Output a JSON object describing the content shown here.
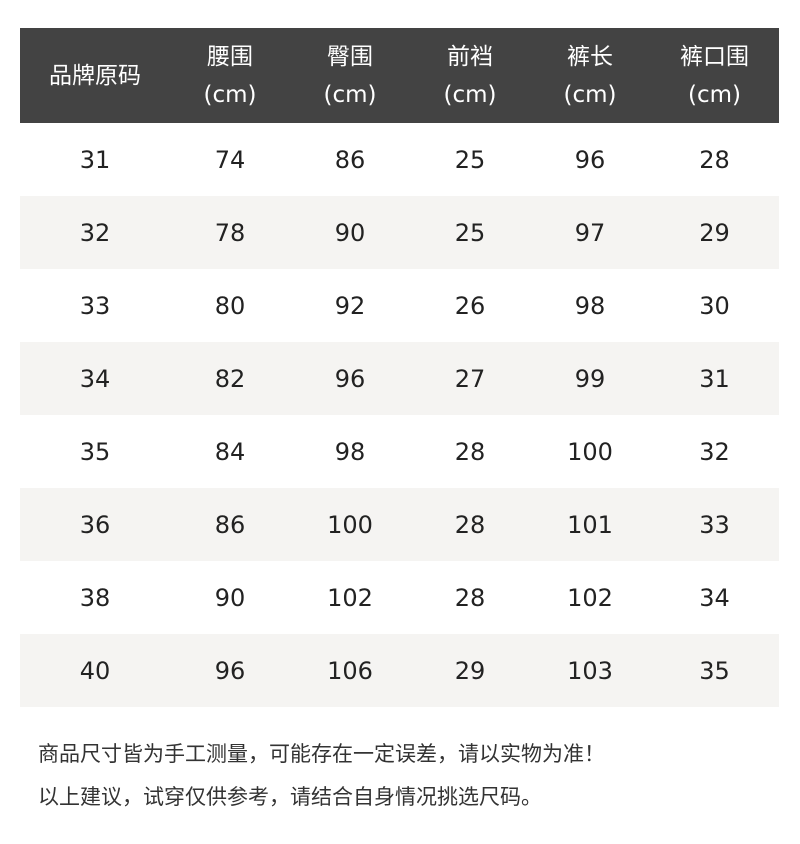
{
  "header": [
    [
      "品牌原码",
      ""
    ],
    [
      "腰围",
      "(cm)"
    ],
    [
      "臀围",
      "(cm)"
    ],
    [
      "前裆",
      "(cm)"
    ],
    [
      "裤长",
      "(cm)"
    ],
    [
      "裤口围",
      "(cm)"
    ]
  ],
  "rows": [
    [
      "31",
      "74",
      "86",
      "25",
      "96",
      "28"
    ],
    [
      "32",
      "78",
      "90",
      "25",
      "97",
      "29"
    ],
    [
      "33",
      "80",
      "92",
      "26",
      "98",
      "30"
    ],
    [
      "34",
      "82",
      "96",
      "27",
      "99",
      "31"
    ],
    [
      "35",
      "84",
      "98",
      "28",
      "100",
      "32"
    ],
    [
      "36",
      "86",
      "100",
      "28",
      "101",
      "33"
    ],
    [
      "38",
      "90",
      "102",
      "28",
      "102",
      "34"
    ],
    [
      "40",
      "96",
      "106",
      "29",
      "103",
      "35"
    ]
  ],
  "notes": [
    "商品尺寸皆为手工测量，可能存在一定误差，请以实物为准！",
    "以上建议，试穿仅供参考，请结合自身情况挑选尺码。"
  ],
  "colors": {
    "header_bg": "#434343",
    "alt_row_bg": "#f5f4f2"
  }
}
